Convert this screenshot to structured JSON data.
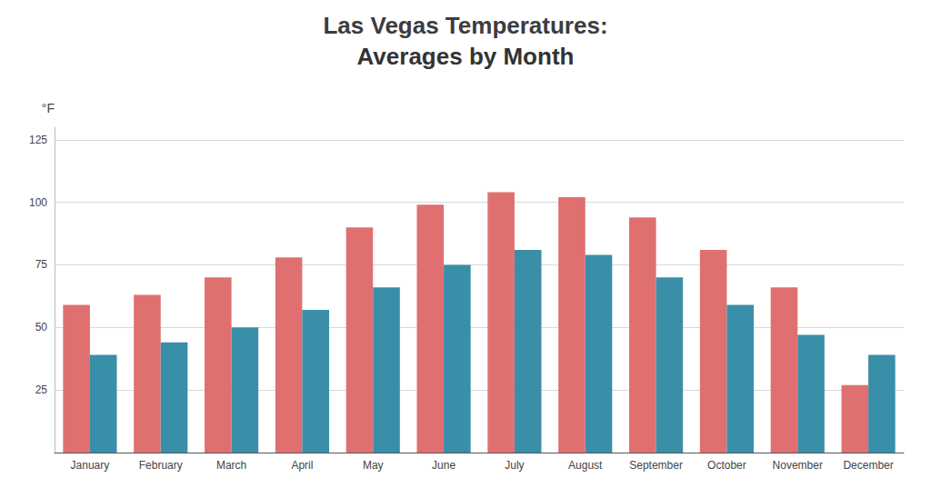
{
  "chart_data": {
    "type": "bar",
    "title": "Las Vegas Temperatures:",
    "subtitle": "Averages by Month",
    "ylabel": "°F",
    "categories": [
      "January",
      "February",
      "March",
      "April",
      "May",
      "June",
      "July",
      "August",
      "September",
      "October",
      "November",
      "December"
    ],
    "series": [
      {
        "color": "#E07070",
        "values": [
          59,
          63,
          70,
          78,
          90,
          99,
          104,
          102,
          94,
          81,
          66,
          27
        ]
      },
      {
        "color": "#3A8FA8",
        "values": [
          39,
          44,
          50,
          57,
          66,
          75,
          81,
          79,
          70,
          59,
          47,
          39
        ]
      }
    ],
    "ylim": [
      0,
      130
    ],
    "yticks": [
      {
        "value": 0,
        "label": null
      },
      25,
      50,
      75,
      100,
      125
    ],
    "grid": true
  }
}
